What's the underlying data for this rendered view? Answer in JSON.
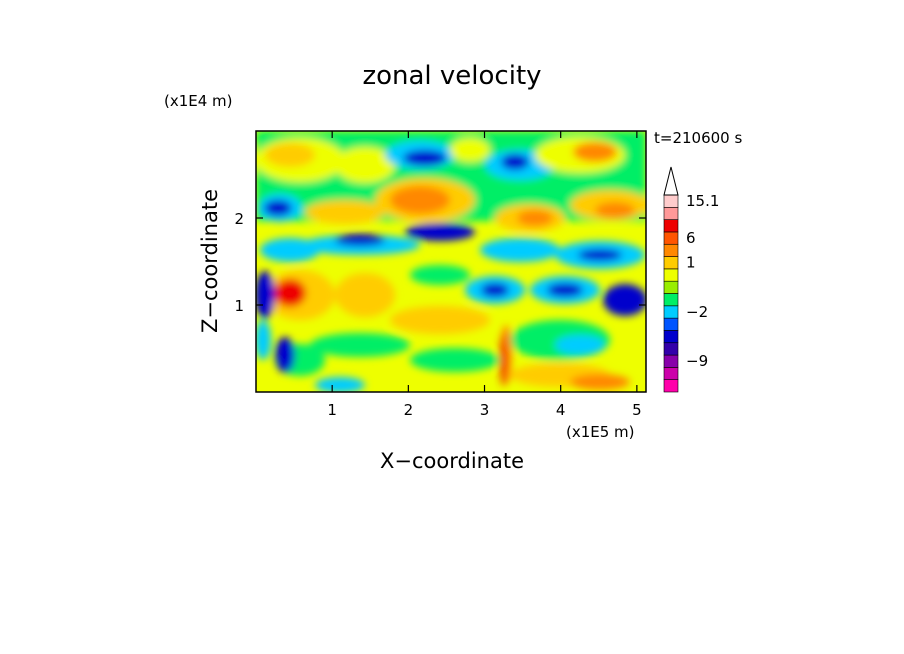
{
  "chart_data": {
    "type": "heatmap",
    "title": "zonal velocity",
    "xlabel": "X−coordinate",
    "ylabel": "Z−coordinate",
    "x_unit": "(x1E5 m)",
    "y_unit": "(x1E4 m)",
    "time_label": "t=210600 s",
    "xlim": [
      0,
      5.12
    ],
    "ylim": [
      0,
      3.0
    ],
    "x_ticks": [
      {
        "value": 1,
        "label": "1"
      },
      {
        "value": 2,
        "label": "2"
      },
      {
        "value": 3,
        "label": "3"
      },
      {
        "value": 4,
        "label": "4"
      },
      {
        "value": 5,
        "label": "5"
      }
    ],
    "y_ticks": [
      {
        "value": 1,
        "label": "1"
      },
      {
        "value": 2,
        "label": "2"
      }
    ],
    "colorbar": {
      "has_overflow_arrow": true,
      "levels": [
        {
          "value": -14,
          "color": "#ff00aa"
        },
        {
          "value": -11,
          "color": "#cc00aa"
        },
        {
          "value": -9,
          "color": "#8800aa"
        },
        {
          "value": -7,
          "color": "#3300aa"
        },
        {
          "value": -5,
          "color": "#0000cc"
        },
        {
          "value": -3,
          "color": "#0055ff"
        },
        {
          "value": -2,
          "color": "#00ccff"
        },
        {
          "value": -1,
          "color": "#00ee66"
        },
        {
          "value": 0,
          "color": "#99ee00"
        },
        {
          "value": 0.5,
          "color": "#eeff00"
        },
        {
          "value": 1,
          "color": "#ffcc00"
        },
        {
          "value": 3,
          "color": "#ff8800"
        },
        {
          "value": 6,
          "color": "#ff5500"
        },
        {
          "value": 9,
          "color": "#ee0000"
        },
        {
          "value": 12,
          "color": "#ff9999"
        },
        {
          "value": 15.1,
          "color": "#ffcccc"
        }
      ],
      "tick_labels": [
        {
          "value": 15.1,
          "label": "15.1"
        },
        {
          "value": 6,
          "label": "6"
        },
        {
          "value": 1,
          "label": "1"
        },
        {
          "value": -2,
          "label": "−2"
        },
        {
          "value": -9,
          "label": "−9"
        }
      ]
    }
  }
}
